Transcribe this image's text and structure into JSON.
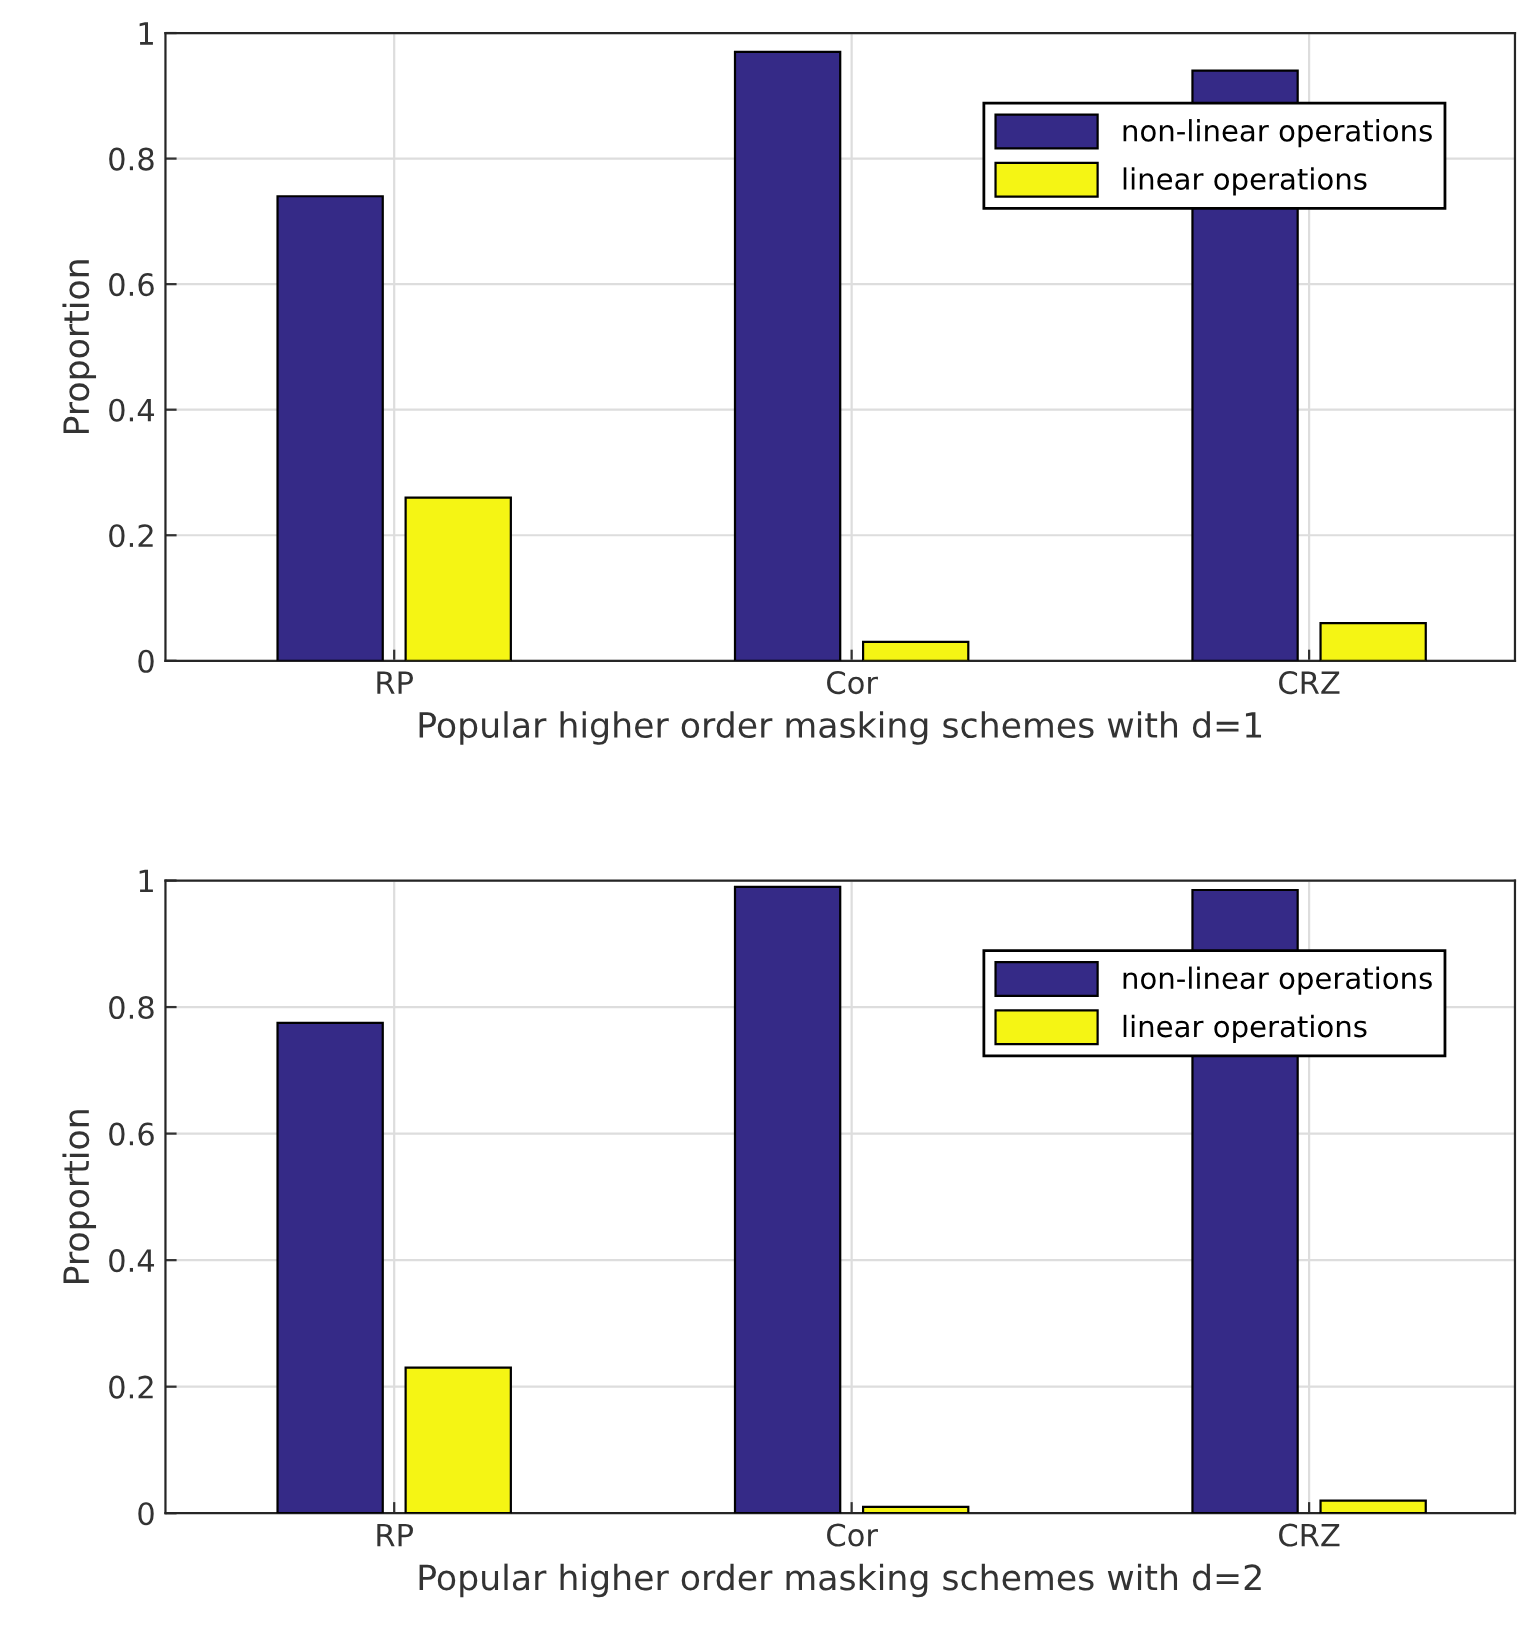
{
  "chart_data": [
    {
      "type": "bar",
      "categories": [
        "RP",
        "Cor",
        "CRZ"
      ],
      "xlabel": "Popular higher order masking schemes with d=1",
      "ylabel": "Proportion",
      "ylim": [
        0,
        1
      ],
      "yticks": [
        0,
        0.2,
        0.4,
        0.6,
        0.8,
        1
      ],
      "grid": true,
      "legend": "top right",
      "series": [
        {
          "name": "non-linear operations",
          "color": "#352a87",
          "values": [
            0.74,
            0.97,
            0.94
          ]
        },
        {
          "name": "linear operations",
          "color": "#f5f514",
          "values": [
            0.26,
            0.03,
            0.06
          ]
        }
      ]
    },
    {
      "type": "bar",
      "categories": [
        "RP",
        "Cor",
        "CRZ"
      ],
      "xlabel": "Popular higher order masking schemes with d=2",
      "ylabel": "Proportion",
      "ylim": [
        0,
        1
      ],
      "yticks": [
        0,
        0.2,
        0.4,
        0.6,
        0.8,
        1
      ],
      "grid": true,
      "legend": "top right",
      "series": [
        {
          "name": "non-linear operations",
          "color": "#352a87",
          "values": [
            0.775,
            0.99,
            0.985
          ]
        },
        {
          "name": "linear operations",
          "color": "#f5f514",
          "values": [
            0.23,
            0.01,
            0.02
          ]
        }
      ]
    }
  ]
}
